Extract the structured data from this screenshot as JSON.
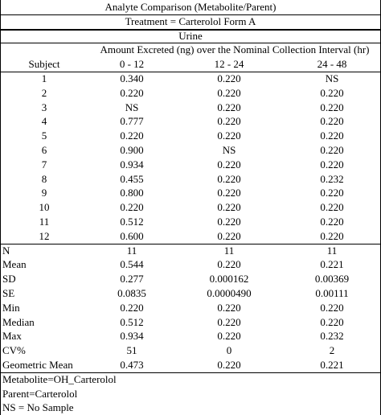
{
  "header": {
    "title": "Analyte Comparison (Metabolite/Parent)",
    "treatment": "Treatment = Carterolol Form A",
    "matrix": "Urine",
    "interval_title": "Amount Excreted (ng) over the Nominal Collection Interval (hr)"
  },
  "table": {
    "columns": [
      "Subject",
      "0 - 12",
      "12 - 24",
      "24 - 48"
    ],
    "rows": [
      [
        "1",
        "0.340",
        "0.220",
        "NS"
      ],
      [
        "2",
        "0.220",
        "0.220",
        "0.220"
      ],
      [
        "3",
        "NS",
        "0.220",
        "0.220"
      ],
      [
        "4",
        "0.777",
        "0.220",
        "0.220"
      ],
      [
        "5",
        "0.220",
        "0.220",
        "0.220"
      ],
      [
        "6",
        "0.900",
        "NS",
        "0.220"
      ],
      [
        "7",
        "0.934",
        "0.220",
        "0.220"
      ],
      [
        "8",
        "0.455",
        "0.220",
        "0.232"
      ],
      [
        "9",
        "0.800",
        "0.220",
        "0.220"
      ],
      [
        "10",
        "0.220",
        "0.220",
        "0.220"
      ],
      [
        "11",
        "0.512",
        "0.220",
        "0.220"
      ],
      [
        "12",
        "0.600",
        "0.220",
        "0.220"
      ]
    ],
    "summary": [
      [
        "N",
        "11",
        "11",
        "11"
      ],
      [
        "Mean",
        "0.544",
        "0.220",
        "0.221"
      ],
      [
        "SD",
        "0.277",
        "0.000162",
        "0.00369"
      ],
      [
        "SE",
        "0.0835",
        "0.0000490",
        "0.00111"
      ],
      [
        "Min",
        "0.220",
        "0.220",
        "0.220"
      ],
      [
        "Median",
        "0.512",
        "0.220",
        "0.220"
      ],
      [
        "Max",
        "0.934",
        "0.220",
        "0.232"
      ],
      [
        "CV%",
        "51",
        "0",
        "2"
      ],
      [
        "Geometric Mean",
        "0.473",
        "0.220",
        "0.221"
      ]
    ]
  },
  "footnotes": [
    "Metabolite=OH_Carterolol",
    "Parent=Carterolol",
    "NS = No Sample"
  ]
}
